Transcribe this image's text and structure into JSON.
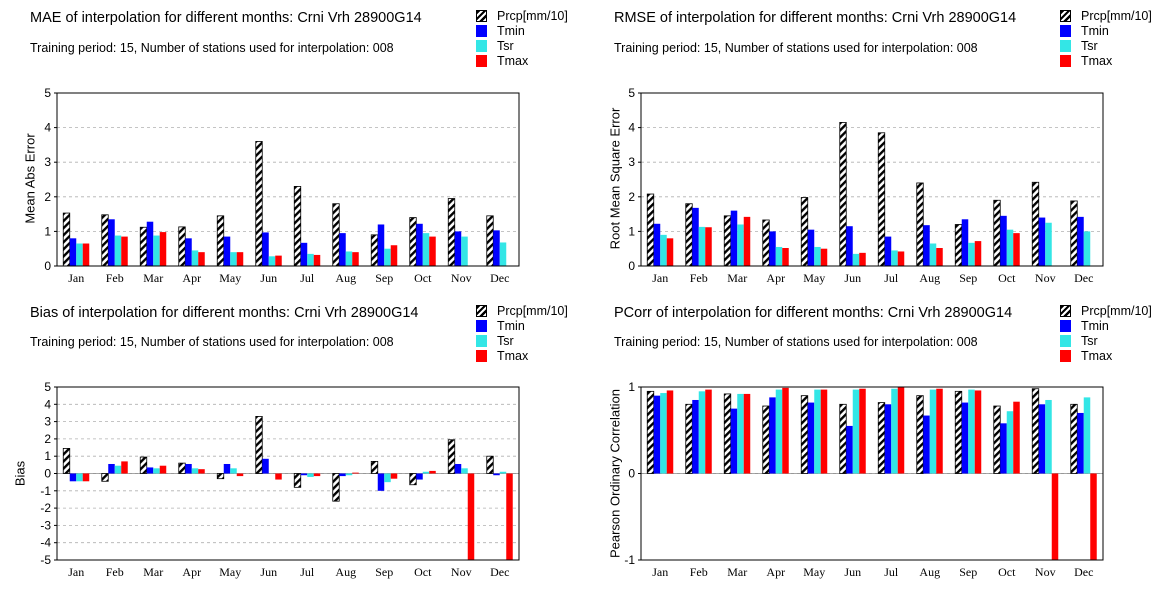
{
  "legend": {
    "series": [
      {
        "name": "Prcp[mm/10]",
        "style": "hatch",
        "color": "#000000"
      },
      {
        "name": "Tmin",
        "style": "solid",
        "color": "#0000ff"
      },
      {
        "name": "Tsr",
        "style": "solid",
        "color": "#33e6e6"
      },
      {
        "name": "Tmax",
        "style": "solid",
        "color": "#ff0000"
      }
    ]
  },
  "panels": [
    {
      "title": "MAE of interpolation for different months: Crni Vrh  28900G14",
      "subtitle": "Training period: 15, Number of stations used for interpolation: 008",
      "ylabel": "Mean Abs Error"
    },
    {
      "title": "RMSE of interpolation for different months: Crni Vrh  28900G14",
      "subtitle": "Training period: 15, Number of stations used for interpolation: 008",
      "ylabel": "Root Mean Square Error"
    },
    {
      "title": "Bias of interpolation for different months: Crni Vrh  28900G14",
      "subtitle": "Training period: 15, Number of stations used for interpolation: 008",
      "ylabel": "Bias"
    },
    {
      "title": "PCorr of interpolation for different months: Crni Vrh  28900G14",
      "subtitle": "Training period: 15, Number of stations used for interpolation: 008",
      "ylabel": "Pearson Ordinary Correlation"
    }
  ],
  "chart_data": [
    {
      "type": "bar",
      "title": "MAE of interpolation for different months: Crni Vrh  28900G14",
      "ylabel": "Mean Abs Error",
      "ylim": [
        0,
        5
      ],
      "yticks": [
        "0",
        "1",
        "2",
        "3",
        "4",
        "5"
      ],
      "categories": [
        "Jan",
        "Feb",
        "Mar",
        "Apr",
        "May",
        "Jun",
        "Jul",
        "Aug",
        "Sep",
        "Oct",
        "Nov",
        "Dec"
      ],
      "grid": "horizontal dashed",
      "legend": "top-right",
      "series": [
        {
          "name": "Prcp[mm/10]",
          "values": [
            1.53,
            1.48,
            1.12,
            1.13,
            1.45,
            3.6,
            2.3,
            1.8,
            0.9,
            1.4,
            1.95,
            1.45
          ]
        },
        {
          "name": "Tmin",
          "values": [
            0.8,
            1.35,
            1.28,
            0.8,
            0.85,
            0.97,
            0.67,
            0.95,
            1.2,
            1.22,
            1.0,
            1.03
          ]
        },
        {
          "name": "Tsr",
          "values": [
            0.65,
            0.88,
            0.88,
            0.45,
            0.4,
            0.28,
            0.35,
            0.42,
            0.5,
            0.95,
            0.85,
            0.68
          ]
        },
        {
          "name": "Tmax",
          "values": [
            0.65,
            0.85,
            0.98,
            0.4,
            0.4,
            0.3,
            0.32,
            0.4,
            0.6,
            0.85,
            0,
            0
          ]
        }
      ]
    },
    {
      "type": "bar",
      "title": "RMSE of interpolation for different months: Crni Vrh  28900G14",
      "ylabel": "Root Mean Square Error",
      "ylim": [
        0,
        5
      ],
      "yticks": [
        "0",
        "1",
        "2",
        "3",
        "4",
        "5"
      ],
      "categories": [
        "Jan",
        "Feb",
        "Mar",
        "Apr",
        "May",
        "Jun",
        "Jul",
        "Aug",
        "Sep",
        "Oct",
        "Nov",
        "Dec"
      ],
      "grid": "horizontal dashed",
      "legend": "top-right",
      "series": [
        {
          "name": "Prcp[mm/10]",
          "values": [
            2.08,
            1.8,
            1.45,
            1.33,
            1.98,
            4.15,
            3.85,
            2.4,
            1.2,
            1.9,
            2.42,
            1.88
          ]
        },
        {
          "name": "Tmin",
          "values": [
            1.22,
            1.68,
            1.6,
            1.0,
            1.05,
            1.15,
            0.85,
            1.18,
            1.35,
            1.45,
            1.4,
            1.42
          ]
        },
        {
          "name": "Tsr",
          "values": [
            0.9,
            1.13,
            1.2,
            0.55,
            0.55,
            0.35,
            0.45,
            0.65,
            0.67,
            1.05,
            1.25,
            1.0
          ]
        },
        {
          "name": "Tmax",
          "values": [
            0.8,
            1.12,
            1.42,
            0.52,
            0.5,
            0.38,
            0.42,
            0.52,
            0.72,
            0.95,
            0,
            0
          ]
        }
      ]
    },
    {
      "type": "bar",
      "title": "Bias of interpolation for different months: Crni Vrh  28900G14",
      "ylabel": "Bias",
      "ylim": [
        -5,
        5
      ],
      "yticks": [
        "-5",
        "-4",
        "-3",
        "-2",
        "-1",
        "0",
        "1",
        "2",
        "3",
        "4",
        "5"
      ],
      "categories": [
        "Jan",
        "Feb",
        "Mar",
        "Apr",
        "May",
        "Jun",
        "Jul",
        "Aug",
        "Sep",
        "Oct",
        "Nov",
        "Dec"
      ],
      "grid": "horizontal dashed",
      "legend": "top-right",
      "series": [
        {
          "name": "Prcp[mm/10]",
          "values": [
            1.45,
            -0.45,
            0.95,
            0.6,
            -0.3,
            3.3,
            -0.8,
            -1.6,
            0.7,
            -0.65,
            1.95,
            1.0
          ]
        },
        {
          "name": "Tmin",
          "values": [
            -0.45,
            0.55,
            0.35,
            0.55,
            0.55,
            0.85,
            -0.1,
            -0.15,
            -1.0,
            -0.35,
            0.55,
            -0.1
          ]
        },
        {
          "name": "Tsr",
          "values": [
            -0.45,
            0.45,
            0.3,
            0.3,
            0.3,
            0.0,
            -0.2,
            -0.1,
            -0.5,
            0.1,
            0.3,
            0.1
          ]
        },
        {
          "name": "Tmax",
          "values": [
            -0.45,
            0.7,
            0.45,
            0.25,
            -0.15,
            -0.35,
            -0.15,
            0.05,
            -0.3,
            0.15,
            -5.0,
            -5.0
          ]
        }
      ]
    },
    {
      "type": "bar",
      "title": "PCorr of interpolation for different months: Crni Vrh  28900G14",
      "ylabel": "Pearson Ordinary Correlation",
      "ylim": [
        -1,
        1
      ],
      "yticks": [
        "-1",
        "0",
        "1"
      ],
      "categories": [
        "Jan",
        "Feb",
        "Mar",
        "Apr",
        "May",
        "Jun",
        "Jul",
        "Aug",
        "Sep",
        "Oct",
        "Nov",
        "Dec"
      ],
      "grid": "horizontal dashed",
      "legend": "top-right",
      "series": [
        {
          "name": "Prcp[mm/10]",
          "values": [
            0.95,
            0.8,
            0.92,
            0.78,
            0.9,
            0.8,
            0.82,
            0.9,
            0.95,
            0.78,
            0.98,
            0.8
          ]
        },
        {
          "name": "Tmin",
          "values": [
            0.9,
            0.85,
            0.75,
            0.88,
            0.82,
            0.55,
            0.8,
            0.67,
            0.82,
            0.58,
            0.8,
            0.7
          ]
        },
        {
          "name": "Tsr",
          "values": [
            0.93,
            0.95,
            0.92,
            0.97,
            0.97,
            0.97,
            0.98,
            0.97,
            0.97,
            0.72,
            0.85,
            0.88
          ]
        },
        {
          "name": "Tmax",
          "values": [
            0.96,
            0.97,
            0.92,
            0.99,
            0.97,
            0.98,
            1.0,
            0.98,
            0.96,
            0.83,
            -1.0,
            -1.0
          ]
        }
      ]
    }
  ]
}
